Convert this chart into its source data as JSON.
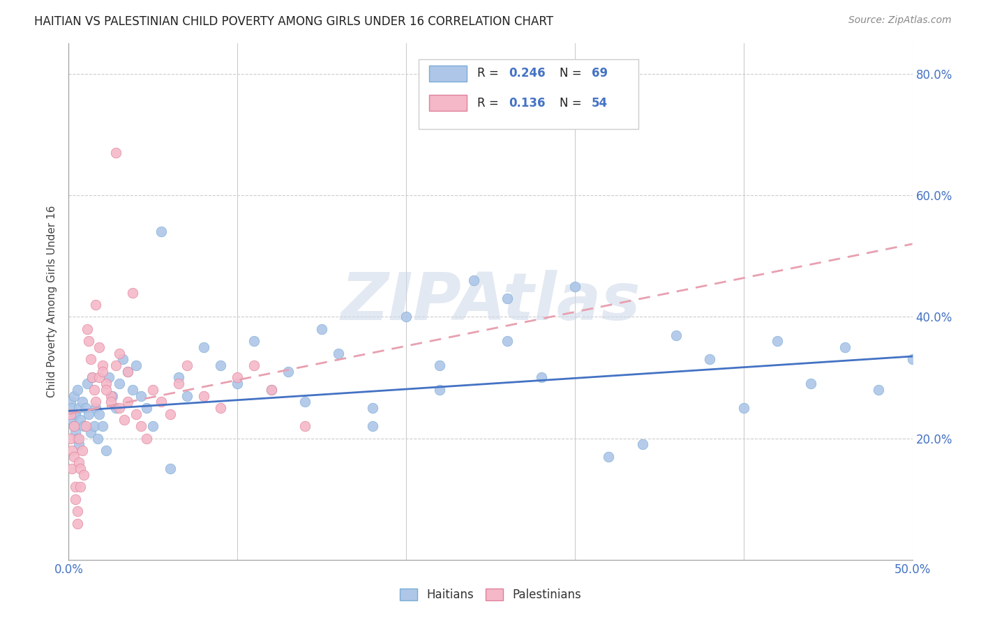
{
  "title": "HAITIAN VS PALESTINIAN CHILD POVERTY AMONG GIRLS UNDER 16 CORRELATION CHART",
  "source": "Source: ZipAtlas.com",
  "ylabel": "Child Poverty Among Girls Under 16",
  "xlim": [
    0.0,
    0.5
  ],
  "ylim": [
    0.0,
    0.85
  ],
  "haitian_color": "#aec6e8",
  "haitian_edge_color": "#7aadd4",
  "palestinian_color": "#f4b8c8",
  "palestinian_edge_color": "#e0809a",
  "haitian_line_color": "#4472c4",
  "palestinian_line_color": "#e8a0b0",
  "haitian_R": 0.246,
  "haitian_N": 69,
  "palestinian_R": 0.136,
  "palestinian_N": 54,
  "watermark": "ZIPAtlas",
  "legend_label_haitian": "Haitians",
  "legend_label_palestinian": "Palestinians",
  "haitian_line_x0": 0.0,
  "haitian_line_y0": 0.245,
  "haitian_line_x1": 0.5,
  "haitian_line_y1": 0.335,
  "palestinian_line_x0": 0.0,
  "palestinian_line_y0": 0.24,
  "palestinian_line_x1": 0.5,
  "palestinian_line_y1": 0.52,
  "haitian_x": [
    0.001,
    0.002,
    0.002,
    0.003,
    0.003,
    0.004,
    0.004,
    0.005,
    0.005,
    0.006,
    0.006,
    0.007,
    0.008,
    0.009,
    0.01,
    0.011,
    0.012,
    0.013,
    0.014,
    0.015,
    0.016,
    0.017,
    0.018,
    0.02,
    0.022,
    0.024,
    0.026,
    0.028,
    0.03,
    0.032,
    0.035,
    0.038,
    0.04,
    0.043,
    0.046,
    0.05,
    0.055,
    0.06,
    0.065,
    0.07,
    0.08,
    0.09,
    0.1,
    0.11,
    0.12,
    0.13,
    0.14,
    0.15,
    0.16,
    0.18,
    0.2,
    0.22,
    0.24,
    0.26,
    0.28,
    0.3,
    0.32,
    0.34,
    0.36,
    0.38,
    0.4,
    0.42,
    0.44,
    0.46,
    0.48,
    0.5,
    0.26,
    0.18,
    0.22
  ],
  "haitian_y": [
    0.26,
    0.25,
    0.23,
    0.22,
    0.27,
    0.24,
    0.21,
    0.28,
    0.2,
    0.25,
    0.19,
    0.23,
    0.26,
    0.22,
    0.25,
    0.29,
    0.24,
    0.21,
    0.3,
    0.22,
    0.25,
    0.2,
    0.24,
    0.22,
    0.18,
    0.3,
    0.27,
    0.25,
    0.29,
    0.33,
    0.31,
    0.28,
    0.32,
    0.27,
    0.25,
    0.22,
    0.54,
    0.15,
    0.3,
    0.27,
    0.35,
    0.32,
    0.29,
    0.36,
    0.28,
    0.31,
    0.26,
    0.38,
    0.34,
    0.22,
    0.4,
    0.28,
    0.46,
    0.36,
    0.3,
    0.45,
    0.17,
    0.19,
    0.37,
    0.33,
    0.25,
    0.36,
    0.29,
    0.35,
    0.28,
    0.33,
    0.43,
    0.25,
    0.32
  ],
  "palestinian_x": [
    0.001,
    0.001,
    0.002,
    0.002,
    0.003,
    0.003,
    0.004,
    0.004,
    0.005,
    0.005,
    0.006,
    0.006,
    0.007,
    0.007,
    0.008,
    0.009,
    0.01,
    0.011,
    0.012,
    0.013,
    0.014,
    0.015,
    0.016,
    0.018,
    0.02,
    0.022,
    0.025,
    0.028,
    0.03,
    0.033,
    0.035,
    0.038,
    0.04,
    0.043,
    0.046,
    0.05,
    0.055,
    0.06,
    0.065,
    0.07,
    0.08,
    0.09,
    0.1,
    0.11,
    0.12,
    0.14,
    0.016,
    0.018,
    0.02,
    0.022,
    0.025,
    0.028,
    0.03,
    0.035
  ],
  "palestinian_y": [
    0.24,
    0.2,
    0.18,
    0.15,
    0.22,
    0.17,
    0.12,
    0.1,
    0.08,
    0.06,
    0.2,
    0.16,
    0.15,
    0.12,
    0.18,
    0.14,
    0.22,
    0.38,
    0.36,
    0.33,
    0.3,
    0.28,
    0.26,
    0.35,
    0.32,
    0.29,
    0.27,
    0.67,
    0.25,
    0.23,
    0.26,
    0.44,
    0.24,
    0.22,
    0.2,
    0.28,
    0.26,
    0.24,
    0.29,
    0.32,
    0.27,
    0.25,
    0.3,
    0.32,
    0.28,
    0.22,
    0.42,
    0.3,
    0.31,
    0.28,
    0.26,
    0.32,
    0.34,
    0.31
  ]
}
